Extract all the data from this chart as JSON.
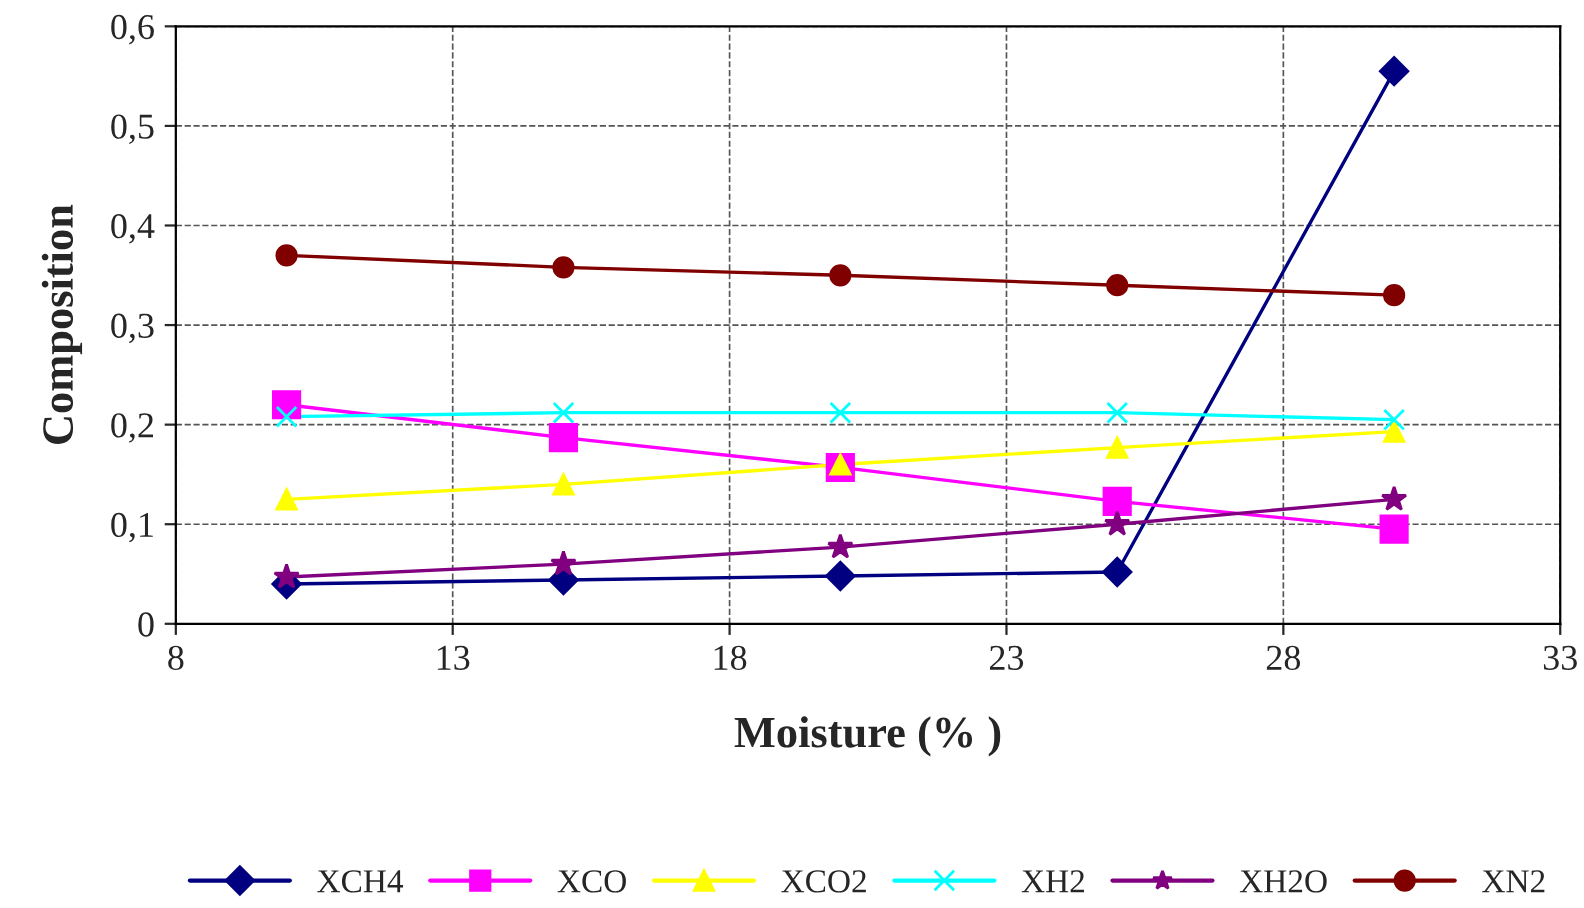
{
  "chart_data": {
    "type": "line",
    "xlabel": "Moisture (% )",
    "ylabel": "Composition",
    "x": [
      10,
      15,
      20,
      25,
      30
    ],
    "series": [
      {
        "name": "XCH4",
        "color": "#000080",
        "marker": "diamond",
        "values": [
          0.04,
          0.044,
          0.048,
          0.052,
          0.555
        ]
      },
      {
        "name": "XCO",
        "color": "#ff00ff",
        "marker": "square",
        "values": [
          0.22,
          0.187,
          0.157,
          0.123,
          0.095
        ]
      },
      {
        "name": "XCO2",
        "color": "#ffff00",
        "marker": "triangle",
        "values": [
          0.125,
          0.14,
          0.16,
          0.177,
          0.193
        ]
      },
      {
        "name": "XH2",
        "color": "#00ffff",
        "marker": "cross",
        "values": [
          0.208,
          0.212,
          0.212,
          0.212,
          0.205
        ]
      },
      {
        "name": "XH2O",
        "color": "#800080",
        "marker": "star",
        "values": [
          0.047,
          0.06,
          0.077,
          0.1,
          0.125
        ]
      },
      {
        "name": "XN2",
        "color": "#800000",
        "marker": "circle",
        "values": [
          0.37,
          0.358,
          0.35,
          0.34,
          0.33
        ]
      }
    ],
    "xlim": [
      8,
      33
    ],
    "xticks": [
      8,
      13,
      18,
      23,
      28,
      33
    ],
    "ylim": [
      0,
      0.6
    ],
    "yticks": [
      0,
      {
        "value": 0.1,
        "label": "0,1"
      },
      {
        "value": 0.2,
        "label": "0,2"
      },
      {
        "value": 0.3,
        "label": "0,3"
      },
      {
        "value": 0.4,
        "label": "0,4"
      },
      {
        "value": 0.5,
        "label": "0,5"
      },
      {
        "value": 0.6,
        "label": "0,6"
      }
    ],
    "grid": true,
    "legend": "bottom",
    "line_style": "solid"
  }
}
